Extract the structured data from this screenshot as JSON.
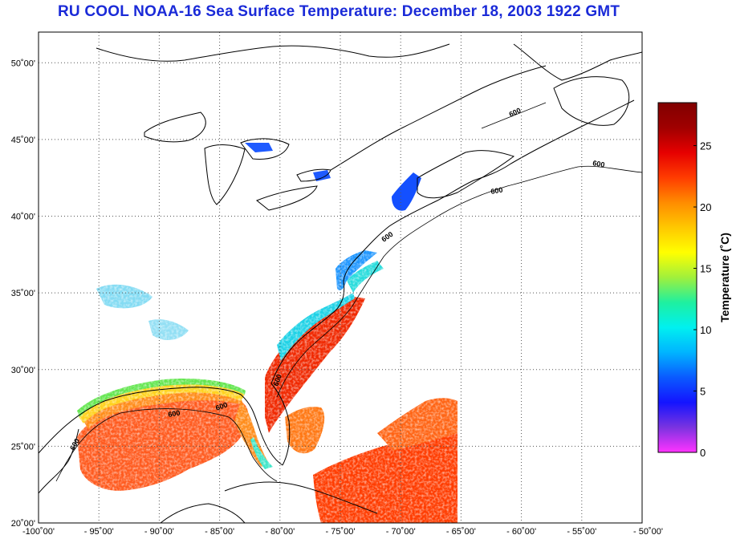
{
  "title": "RU COOL  NOAA-16  Sea Surface Temperature:  December 18, 2003 1922 GMT",
  "map": {
    "lon_range": [
      -100,
      -50
    ],
    "lat_range": [
      20,
      52
    ],
    "lon_ticks": [
      {
        "value": -100,
        "label": "-100˚00'"
      },
      {
        "value": -95,
        "label": "- 95˚00'"
      },
      {
        "value": -90,
        "label": "- 90˚00'"
      },
      {
        "value": -85,
        "label": "- 85˚00'"
      },
      {
        "value": -80,
        "label": "- 80˚00'"
      },
      {
        "value": -75,
        "label": "- 75˚00'"
      },
      {
        "value": -70,
        "label": "- 70˚00'"
      },
      {
        "value": -65,
        "label": "- 65˚00'"
      },
      {
        "value": -60,
        "label": "- 60˚00'"
      },
      {
        "value": -55,
        "label": "- 55˚00'"
      },
      {
        "value": -50,
        "label": "- 50˚00'"
      }
    ],
    "lat_ticks": [
      {
        "value": 20,
        "label": "20˚00'"
      },
      {
        "value": 25,
        "label": "25˚00'"
      },
      {
        "value": 30,
        "label": "30˚00'"
      },
      {
        "value": 35,
        "label": "35˚00'"
      },
      {
        "value": 40,
        "label": "40˚00'"
      },
      {
        "value": 45,
        "label": "45˚00'"
      },
      {
        "value": 50,
        "label": "50˚00'"
      }
    ],
    "isobath_label": "600",
    "grid": "dotted"
  },
  "colorbar": {
    "label": "Temperature (˚C)",
    "range": [
      0,
      28.5
    ],
    "ticks": [
      {
        "value": 0,
        "label": "0"
      },
      {
        "value": 5,
        "label": "5"
      },
      {
        "value": 10,
        "label": "10"
      },
      {
        "value": 15,
        "label": "15"
      },
      {
        "value": 20,
        "label": "20"
      },
      {
        "value": 25,
        "label": "25"
      }
    ],
    "colors": [
      "#ff33ff",
      "#7a33e0",
      "#1414ff",
      "#0a5aff",
      "#00b4ff",
      "#00f0f0",
      "#1ef0a0",
      "#a0f03c",
      "#ffff00",
      "#ffc800",
      "#ff8c00",
      "#ff3c00",
      "#e60000",
      "#a00000",
      "#800000"
    ]
  }
}
